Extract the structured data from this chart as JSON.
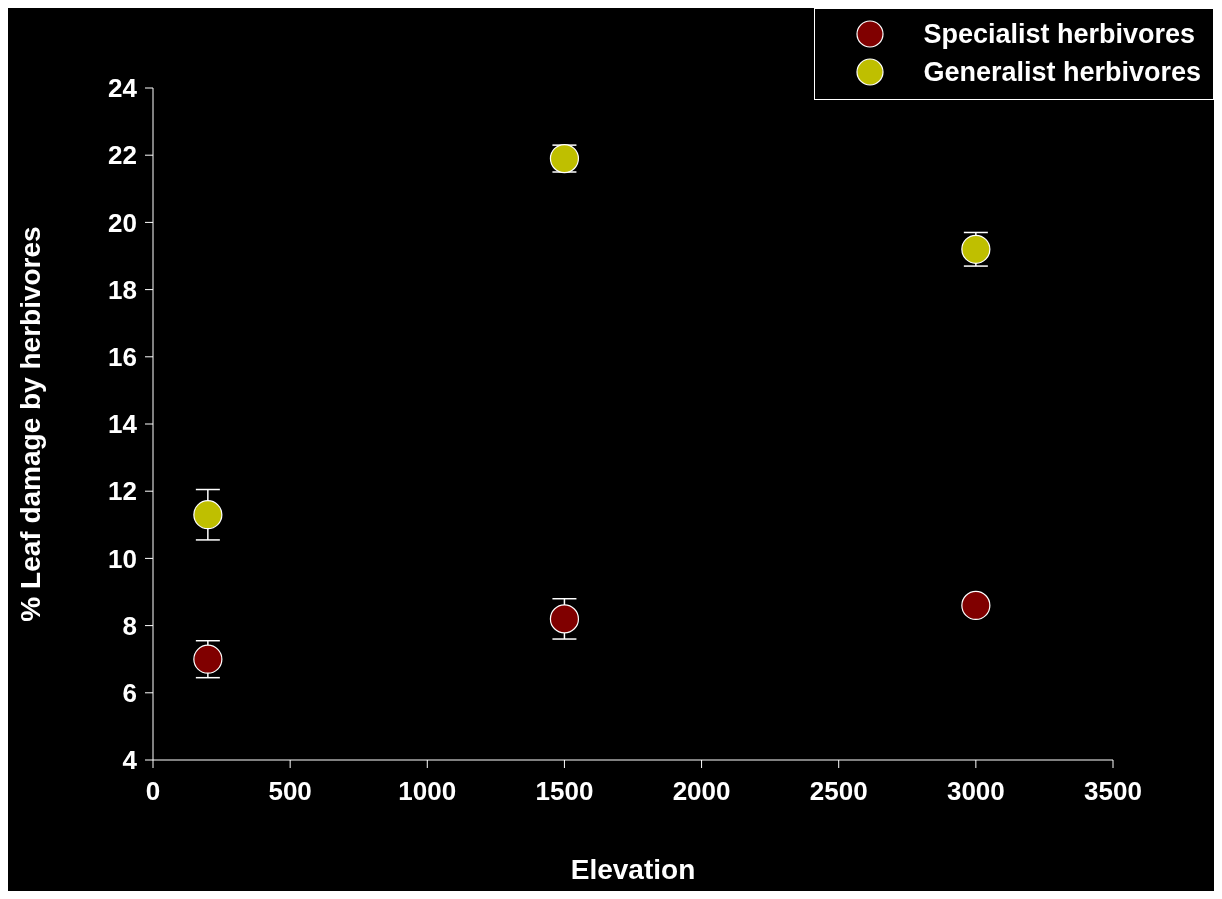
{
  "chart_data": {
    "type": "scatter",
    "xlabel": "Elevation",
    "ylabel": "% Leaf damage by herbivores",
    "series": [
      {
        "name": "Specialist herbivores",
        "color": "#800000",
        "x": [
          200,
          1500,
          3000
        ],
        "values": [
          7.0,
          8.2,
          8.6
        ],
        "errors": [
          0.55,
          0.6,
          null
        ]
      },
      {
        "name": "Generalist herbivores",
        "color": "#bfbf00",
        "x": [
          200,
          1500,
          3000
        ],
        "values": [
          11.3,
          21.9,
          19.2
        ],
        "errors": [
          0.75,
          0.4,
          0.5
        ]
      }
    ],
    "xlim": [
      0,
      3500
    ],
    "xticks": [
      0,
      500,
      1000,
      1500,
      2000,
      2500,
      3000,
      3500
    ],
    "ylim": [
      4,
      24
    ],
    "yticks": [
      4,
      6,
      8,
      10,
      12,
      14,
      16,
      18,
      20,
      22,
      24
    ],
    "grid": false,
    "legend": "top right",
    "marker": "circle"
  }
}
